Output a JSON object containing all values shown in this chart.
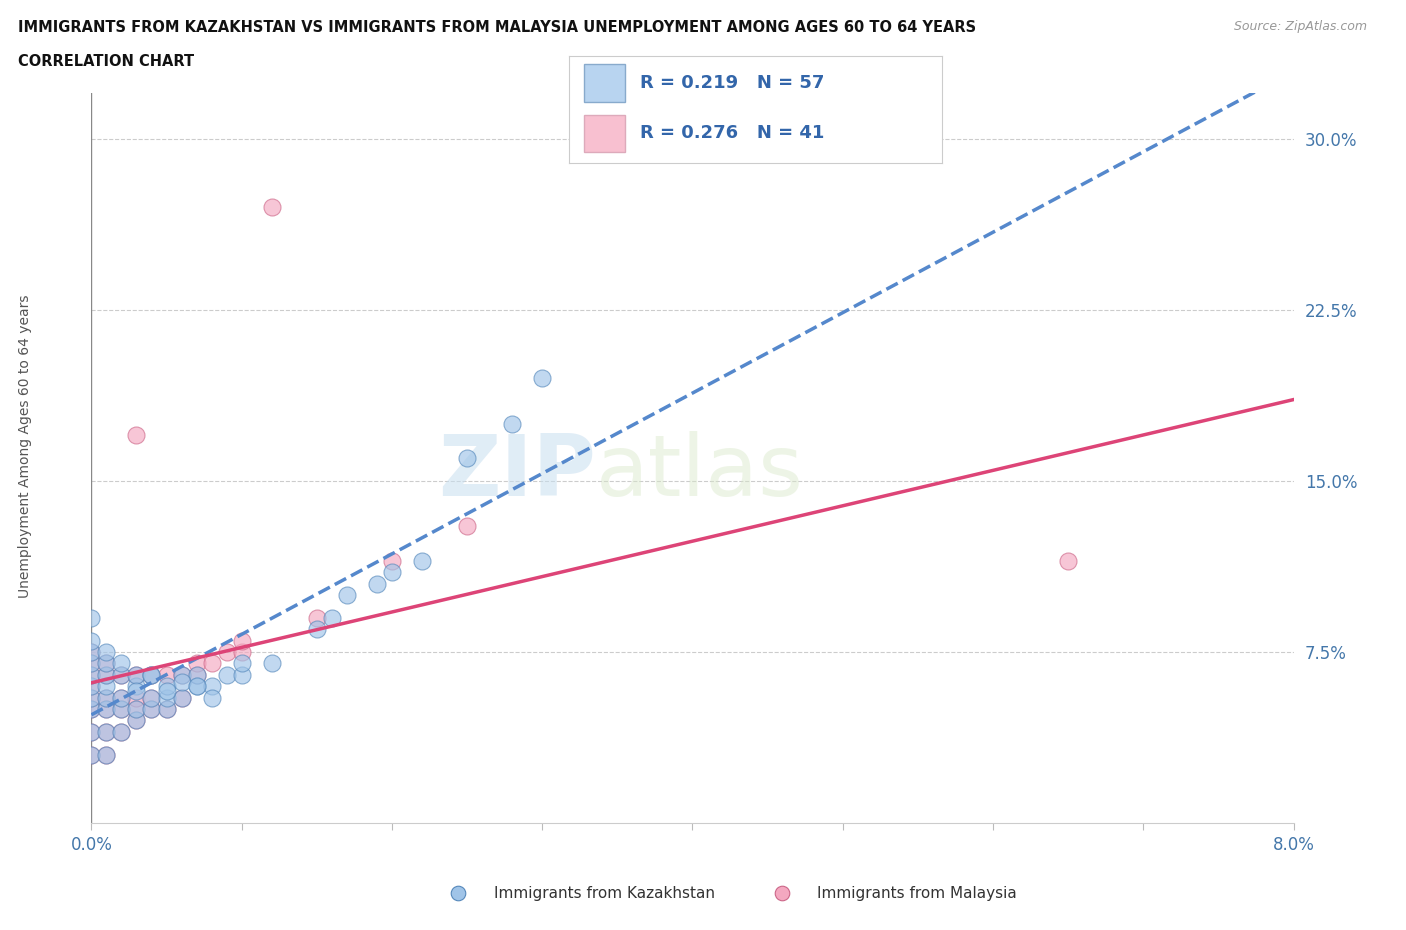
{
  "title_line1": "IMMIGRANTS FROM KAZAKHSTAN VS IMMIGRANTS FROM MALAYSIA UNEMPLOYMENT AMONG AGES 60 TO 64 YEARS",
  "title_line2": "CORRELATION CHART",
  "source_text": "Source: ZipAtlas.com",
  "ylabel": "Unemployment Among Ages 60 to 64 years",
  "xlim": [
    0.0,
    0.08
  ],
  "ylim": [
    0.0,
    0.32
  ],
  "xtick_positions": [
    0.0,
    0.01,
    0.02,
    0.03,
    0.04,
    0.05,
    0.06,
    0.07,
    0.08
  ],
  "xticklabels": [
    "0.0%",
    "",
    "",
    "",
    "",
    "",
    "",
    "",
    "8.0%"
  ],
  "ytick_positions": [
    0.0,
    0.075,
    0.15,
    0.225,
    0.3
  ],
  "yticklabels": [
    "",
    "7.5%",
    "15.0%",
    "22.5%",
    "30.0%"
  ],
  "R_kaz": 0.219,
  "N_kaz": 57,
  "R_mal": 0.276,
  "N_mal": 41,
  "color_kaz": "#a0c4e8",
  "color_mal": "#f4a8c0",
  "edge_kaz": "#5588bb",
  "edge_mal": "#cc6688",
  "legend_fill_kaz": "#b8d4f0",
  "legend_fill_mal": "#f8c0d0",
  "legend_edge_kaz": "#88aacc",
  "legend_edge_mal": "#ddaabb",
  "watermark_color": "#d8eef8",
  "kaz_x": [
    0.0,
    0.0,
    0.0,
    0.0,
    0.0,
    0.0,
    0.0,
    0.0,
    0.0,
    0.0,
    0.001,
    0.001,
    0.001,
    0.001,
    0.001,
    0.001,
    0.001,
    0.001,
    0.002,
    0.002,
    0.002,
    0.002,
    0.002,
    0.003,
    0.003,
    0.003,
    0.003,
    0.004,
    0.004,
    0.004,
    0.005,
    0.005,
    0.005,
    0.006,
    0.006,
    0.007,
    0.007,
    0.008,
    0.009,
    0.01,
    0.01,
    0.012,
    0.015,
    0.016,
    0.017,
    0.019,
    0.02,
    0.022,
    0.025,
    0.028,
    0.03,
    0.004,
    0.003,
    0.006,
    0.005,
    0.007,
    0.008
  ],
  "kaz_y": [
    0.03,
    0.04,
    0.05,
    0.055,
    0.06,
    0.065,
    0.07,
    0.075,
    0.08,
    0.09,
    0.03,
    0.04,
    0.05,
    0.055,
    0.06,
    0.065,
    0.07,
    0.075,
    0.04,
    0.05,
    0.055,
    0.065,
    0.07,
    0.045,
    0.05,
    0.06,
    0.065,
    0.05,
    0.055,
    0.065,
    0.05,
    0.055,
    0.06,
    0.055,
    0.065,
    0.06,
    0.065,
    0.06,
    0.065,
    0.065,
    0.07,
    0.07,
    0.085,
    0.09,
    0.1,
    0.105,
    0.11,
    0.115,
    0.16,
    0.175,
    0.195,
    0.065,
    0.058,
    0.062,
    0.058,
    0.06,
    0.055
  ],
  "mal_x": [
    0.0,
    0.0,
    0.0,
    0.0,
    0.0,
    0.0,
    0.0,
    0.0,
    0.001,
    0.001,
    0.001,
    0.001,
    0.001,
    0.001,
    0.002,
    0.002,
    0.002,
    0.002,
    0.003,
    0.003,
    0.003,
    0.003,
    0.004,
    0.004,
    0.004,
    0.005,
    0.005,
    0.006,
    0.006,
    0.007,
    0.007,
    0.008,
    0.009,
    0.01,
    0.01,
    0.015,
    0.02,
    0.025,
    0.065,
    0.003,
    0.012
  ],
  "mal_y": [
    0.03,
    0.04,
    0.05,
    0.055,
    0.06,
    0.065,
    0.07,
    0.075,
    0.03,
    0.04,
    0.05,
    0.055,
    0.065,
    0.07,
    0.04,
    0.05,
    0.055,
    0.065,
    0.045,
    0.05,
    0.055,
    0.065,
    0.05,
    0.055,
    0.065,
    0.05,
    0.065,
    0.055,
    0.065,
    0.065,
    0.07,
    0.07,
    0.075,
    0.075,
    0.08,
    0.09,
    0.115,
    0.13,
    0.115,
    0.17,
    0.27
  ]
}
